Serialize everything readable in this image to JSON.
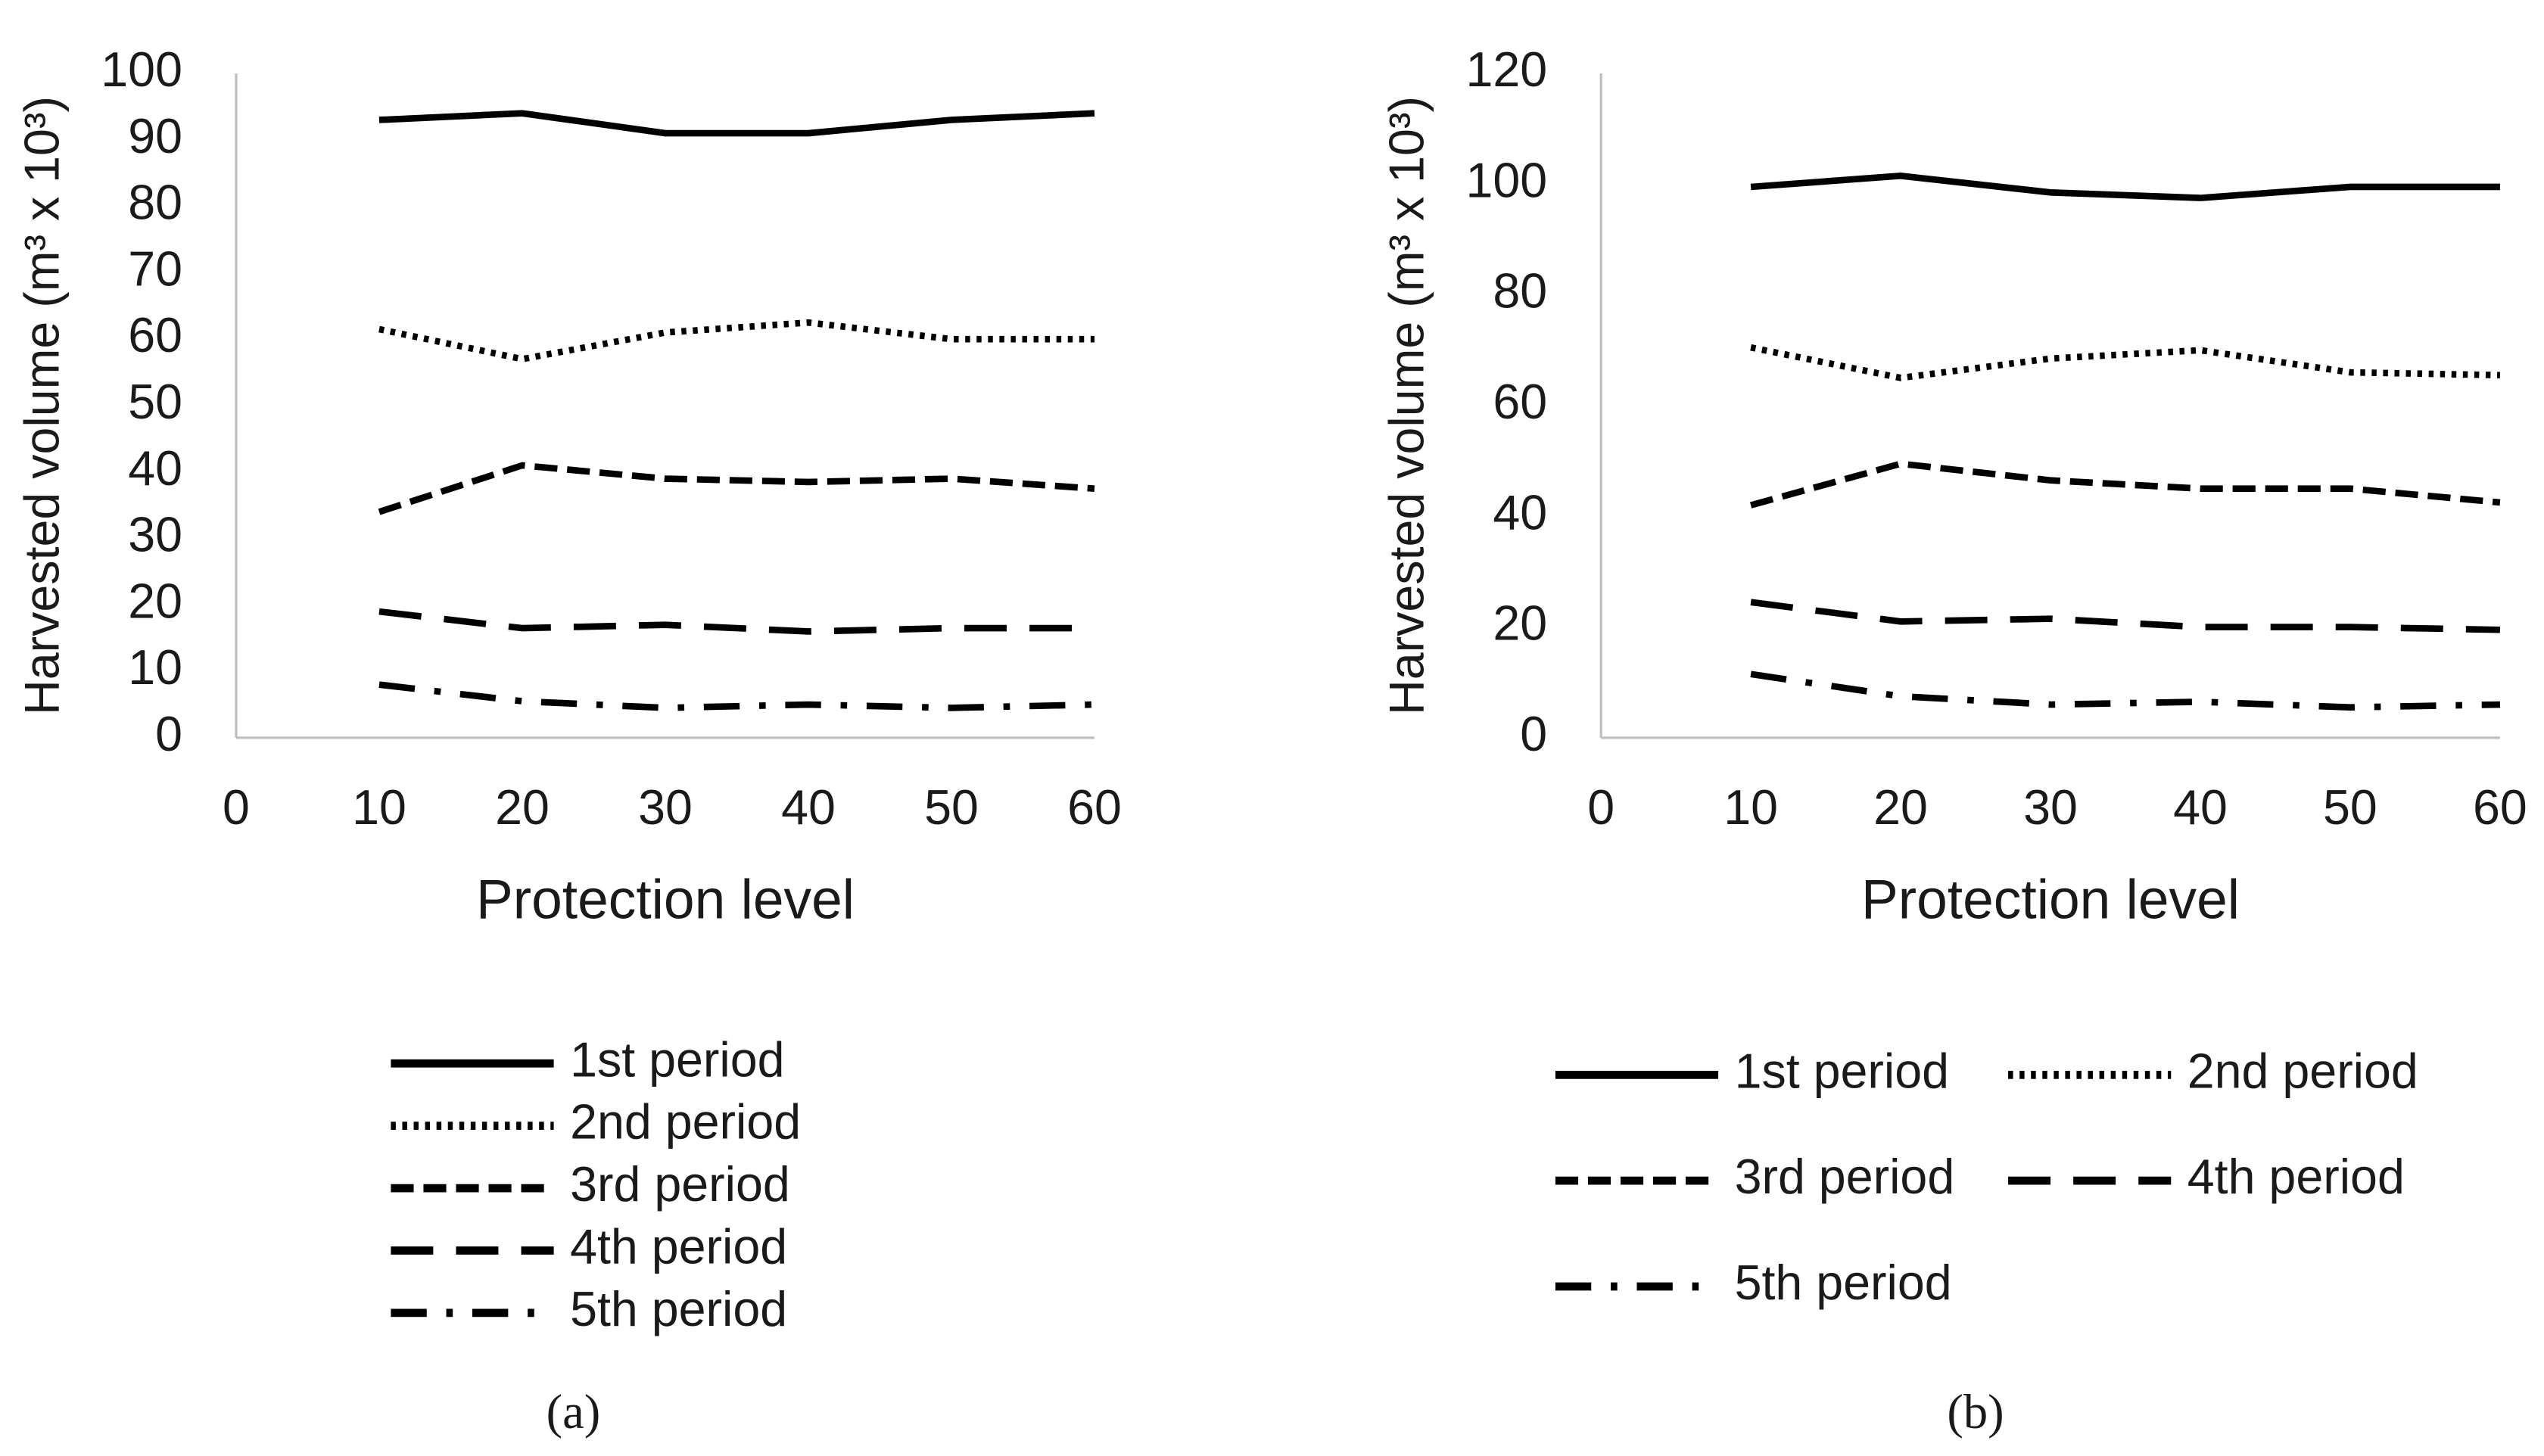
{
  "chart_data": [
    {
      "type": "line",
      "caption": "(a)",
      "xlabel": "Protection level",
      "ylabel": "Harvested volume (m³ x 10³)",
      "x": [
        10,
        20,
        30,
        40,
        50,
        60
      ],
      "xlim": [
        0,
        60
      ],
      "xticks": [
        0,
        10,
        20,
        30,
        40,
        50,
        60
      ],
      "ylim": [
        0,
        100
      ],
      "yticks": [
        0,
        10,
        20,
        30,
        40,
        50,
        60,
        70,
        80,
        90,
        100
      ],
      "grid": false,
      "legend_columns": 1,
      "series": [
        {
          "name": "1st period",
          "color": "#000000",
          "style": "solid",
          "values": [
            93,
            94,
            91,
            91,
            93,
            94
          ]
        },
        {
          "name": "2nd period",
          "color": "#000000",
          "style": "dotted",
          "values": [
            61.5,
            57,
            61,
            62.5,
            60,
            60
          ]
        },
        {
          "name": "3rd period",
          "color": "#000000",
          "style": "dashed",
          "values": [
            34,
            41,
            39,
            38.5,
            39,
            37.5
          ]
        },
        {
          "name": "4th period",
          "color": "#000000",
          "style": "long-dash",
          "values": [
            19,
            16.5,
            17,
            16,
            16.5,
            16.5
          ]
        },
        {
          "name": "5th period",
          "color": "#000000",
          "style": "dash-dot",
          "values": [
            8,
            5.5,
            4.5,
            5,
            4.5,
            5
          ]
        }
      ]
    },
    {
      "type": "line",
      "caption": "(b)",
      "xlabel": "Protection level",
      "ylabel": "Harvested volume (m³ x 10³)",
      "x": [
        10,
        20,
        30,
        40,
        50,
        60
      ],
      "xlim": [
        0,
        60
      ],
      "xticks": [
        0,
        10,
        20,
        30,
        40,
        50,
        60
      ],
      "ylim": [
        0,
        120
      ],
      "yticks": [
        0,
        20,
        40,
        60,
        80,
        100,
        120
      ],
      "grid": false,
      "legend_columns": 2,
      "series": [
        {
          "name": "1st period",
          "color": "#000000",
          "style": "solid",
          "values": [
            99.5,
            101.5,
            98.5,
            97.5,
            99.5,
            99.5
          ]
        },
        {
          "name": "2nd period",
          "color": "#000000",
          "style": "dotted",
          "values": [
            70.5,
            65,
            68.5,
            70,
            66,
            65.5
          ]
        },
        {
          "name": "3rd period",
          "color": "#000000",
          "style": "dashed",
          "values": [
            42,
            49.5,
            46.5,
            45,
            45,
            42.5
          ]
        },
        {
          "name": "4th period",
          "color": "#000000",
          "style": "long-dash",
          "values": [
            24.5,
            21,
            21.5,
            20,
            20,
            19.5
          ]
        },
        {
          "name": "5th period",
          "color": "#000000",
          "style": "dash-dot",
          "values": [
            11.5,
            7.5,
            6,
            6.5,
            5.5,
            6
          ]
        }
      ]
    }
  ]
}
